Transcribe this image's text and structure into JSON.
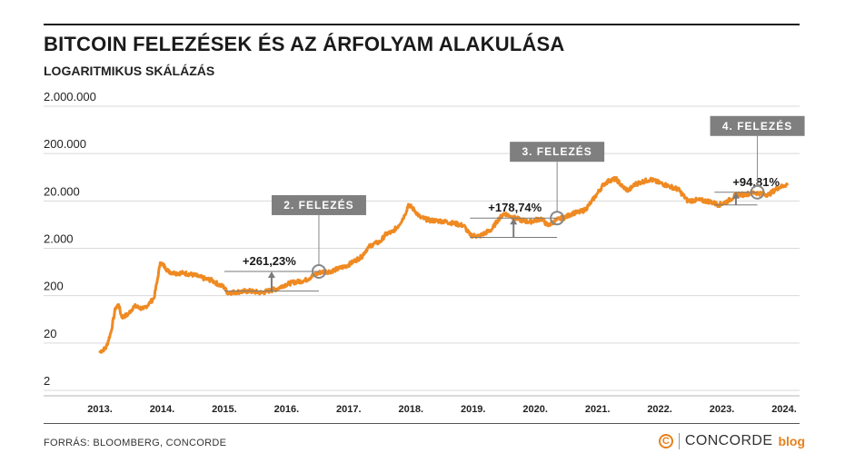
{
  "header": {
    "title": "BITCOIN FELEZÉSEK ÉS AZ ÁRFOLYAM ALAKULÁSA",
    "subtitle": "LOGARITMIKUS SKÁLÁZÁS"
  },
  "footer": {
    "source": "FORRÁS: BLOOMBERG, CONCORDE",
    "brand_name": "CONCORDE",
    "brand_suffix": "blog",
    "brand_logo": "C"
  },
  "colors": {
    "line": "#ef8a22",
    "grid": "#d9d9d9",
    "label_box": "#7f7f7f",
    "annotation": "#7a7a7a"
  },
  "chart_data": {
    "type": "line",
    "title": "BITCOIN FELEZÉSEK ÉS AZ ÁRFOLYAM ALAKULÁSA",
    "subtitle": "LOGARITMIKUS SKÁLÁZÁS",
    "y_scale": "log",
    "ylim": [
      2,
      2000000
    ],
    "y_ticks": [
      2,
      20,
      200,
      2000,
      20000,
      200000,
      2000000
    ],
    "y_tick_labels": [
      "2",
      "20",
      "200",
      "2.000",
      "20.000",
      "200.000",
      "2.000.000"
    ],
    "x_ticks": [
      2013,
      2014,
      2015,
      2016,
      2017,
      2018,
      2019,
      2020,
      2021,
      2022,
      2023,
      2024
    ],
    "x_tick_labels": [
      "2013.",
      "2014.",
      "2015.",
      "2016.",
      "2017.",
      "2018.",
      "2019.",
      "2020.",
      "2021.",
      "2022.",
      "2023.",
      "2024."
    ],
    "xlim": [
      2012.75,
      2024.3
    ],
    "grid": true,
    "series": [
      {
        "x": [
          2013.0,
          2013.1,
          2013.18,
          2013.25,
          2013.3,
          2013.35,
          2013.45,
          2013.55,
          2013.7,
          2013.8,
          2013.87,
          2013.92,
          2013.97,
          2014.05,
          2014.1,
          2014.2,
          2014.35,
          2014.5,
          2014.6,
          2014.7,
          2014.8,
          2014.9,
          2015.0,
          2015.05,
          2015.2,
          2015.4,
          2015.6,
          2015.75,
          2015.85,
          2015.95,
          2016.1,
          2016.3,
          2016.45,
          2016.55,
          2016.7,
          2016.85,
          2017.0,
          2017.1,
          2017.2,
          2017.3,
          2017.4,
          2017.5,
          2017.6,
          2017.7,
          2017.8,
          2017.9,
          2017.96,
          2018.05,
          2018.15,
          2018.3,
          2018.5,
          2018.7,
          2018.85,
          2018.95,
          2019.1,
          2019.3,
          2019.4,
          2019.5,
          2019.6,
          2019.75,
          2019.9,
          2020.1,
          2020.2,
          2020.35,
          2020.5,
          2020.6,
          2020.7,
          2020.8,
          2020.9,
          2021.0,
          2021.1,
          2021.2,
          2021.3,
          2021.4,
          2021.5,
          2021.6,
          2021.7,
          2021.85,
          2022.0,
          2022.15,
          2022.3,
          2022.45,
          2022.6,
          2022.8,
          2022.95,
          2023.1,
          2023.25,
          2023.35,
          2023.5,
          2023.6,
          2023.75,
          2023.9,
          2024.0,
          2024.05
        ],
        "y": [
          13,
          16,
          35,
          110,
          130,
          70,
          80,
          120,
          105,
          140,
          180,
          400,
          1000,
          800,
          650,
          600,
          600,
          550,
          500,
          450,
          420,
          350,
          300,
          230,
          240,
          250,
          230,
          260,
          280,
          330,
          380,
          420,
          550,
          630,
          650,
          750,
          900,
          1100,
          1300,
          2000,
          2500,
          2700,
          4000,
          4400,
          6000,
          10000,
          17000,
          13000,
          9000,
          7800,
          7500,
          6700,
          6000,
          3800,
          3600,
          5000,
          8000,
          11000,
          9500,
          8000,
          7200,
          8500,
          6000,
          8000,
          9300,
          11000,
          11500,
          13000,
          19000,
          29000,
          45000,
          55000,
          58000,
          40000,
          33000,
          45000,
          50000,
          57000,
          48000,
          41000,
          35000,
          20000,
          21000,
          19500,
          16500,
          20000,
          28000,
          27000,
          30000,
          29000,
          27000,
          38000,
          42000,
          45000
        ]
      }
    ],
    "annotations": [
      {
        "label": "2. FELEZÉS",
        "change": "+261,23%",
        "from_x": 2015.0,
        "from_y": 250,
        "halving_x": 2016.52,
        "halving_y": 650
      },
      {
        "label": "3. FELEZÉS",
        "change": "+178,74%",
        "from_x": 2018.95,
        "from_y": 3400,
        "halving_x": 2020.35,
        "halving_y": 8700
      },
      {
        "label": "4. FELEZÉS",
        "change": "+94,81%",
        "from_x": 2022.88,
        "from_y": 16500,
        "halving_x": 2023.57,
        "halving_y": 30500
      }
    ]
  }
}
